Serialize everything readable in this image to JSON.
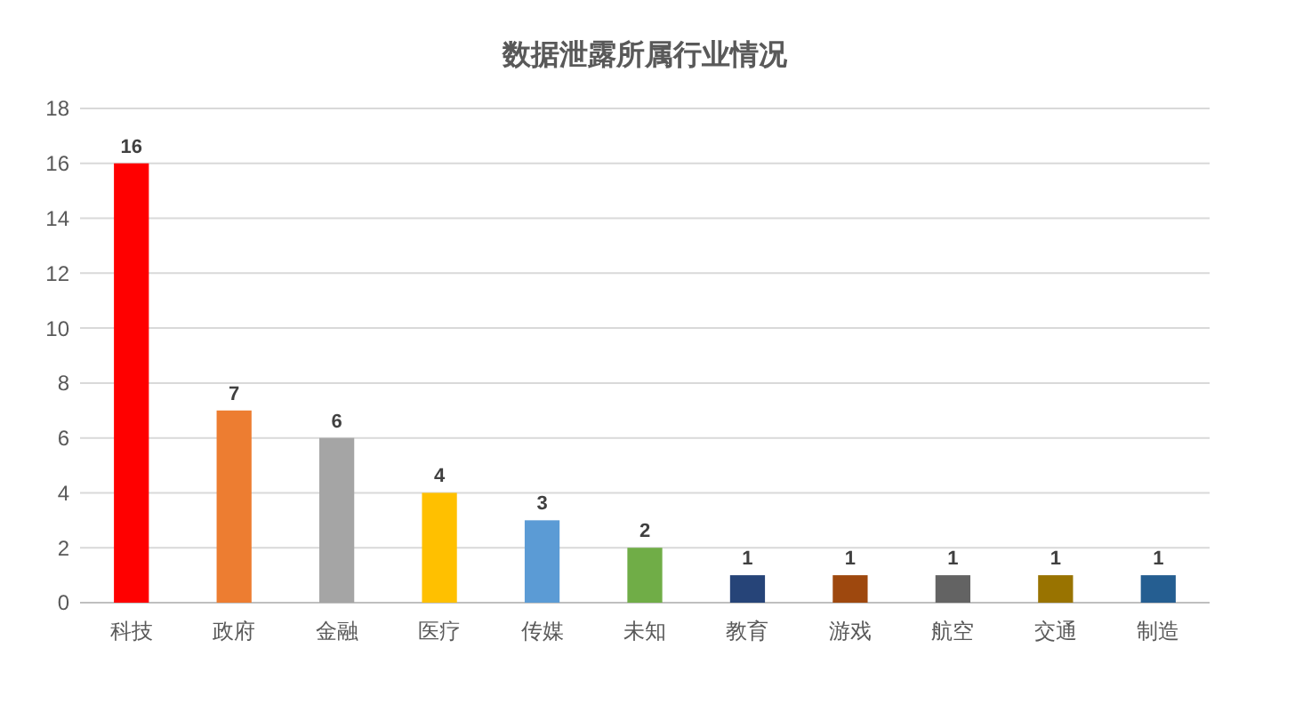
{
  "chart_data": {
    "type": "bar",
    "title": "数据泄露所属行业情况",
    "categories": [
      "科技",
      "政府",
      "金融",
      "医疗",
      "传媒",
      "未知",
      "教育",
      "游戏",
      "航空",
      "交通",
      "制造"
    ],
    "values": [
      16,
      7,
      6,
      4,
      3,
      2,
      1,
      1,
      1,
      1,
      1
    ],
    "colors": [
      "#ff0000",
      "#ed7d31",
      "#a5a5a5",
      "#ffc000",
      "#5b9bd5",
      "#70ad47",
      "#264478",
      "#9e480e",
      "#636363",
      "#997300",
      "#255e91"
    ],
    "ylim": [
      0,
      18
    ],
    "yticks": [
      0,
      2,
      4,
      6,
      8,
      10,
      12,
      14,
      16,
      18
    ],
    "grid": "y",
    "data_labels": true
  }
}
